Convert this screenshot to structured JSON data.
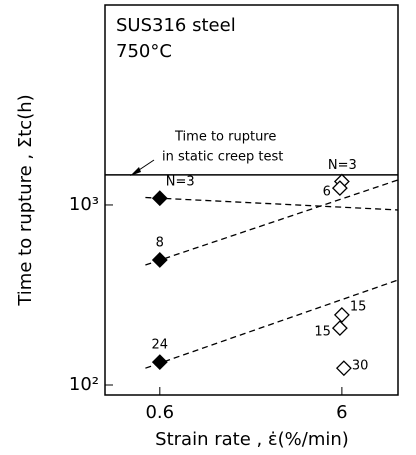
{
  "chart_data": {
    "type": "scatter",
    "text_lines": [
      "SUS316 steel",
      "750°C"
    ],
    "annotation": [
      "Time to rupture",
      "in static creep test"
    ],
    "reference_line": 1470,
    "xlabel": "Strain rate , ε̇(%/min)",
    "ylabel": "Time to rupture , Σtc(h)",
    "xscale": "log",
    "yscale": "log",
    "xlim": [
      0.3,
      12.2
    ],
    "ylim": [
      88,
      12900
    ],
    "xticks": [
      0.6,
      6
    ],
    "yticks": [
      {
        "value": 100,
        "label": "10²"
      },
      {
        "value": 1000,
        "label": "10³"
      }
    ],
    "series": [
      {
        "marker": "filled-diamond",
        "color": "#000000",
        "x": [
          0.6,
          0.6,
          0.6
        ],
        "values": [
          1090,
          495,
          134
        ],
        "labels": [
          "N=3",
          "8",
          "24"
        ]
      },
      {
        "marker": "open-diamond",
        "color": "#000000",
        "x": [
          6,
          6,
          6,
          6,
          6
        ],
        "values": [
          1350,
          1240,
          245,
          207,
          124
        ],
        "labels": [
          "N=3",
          "6",
          "15",
          "15",
          "30"
        ]
      }
    ],
    "fit_lines": [
      {
        "x": [
          0.5,
          12.2
        ],
        "values": [
          1100,
          938
        ]
      },
      {
        "x": [
          0.5,
          12.2
        ],
        "values": [
          464,
          1377
        ]
      },
      {
        "x": [
          0.5,
          12.2
        ],
        "values": [
          124,
          383
        ]
      }
    ]
  }
}
